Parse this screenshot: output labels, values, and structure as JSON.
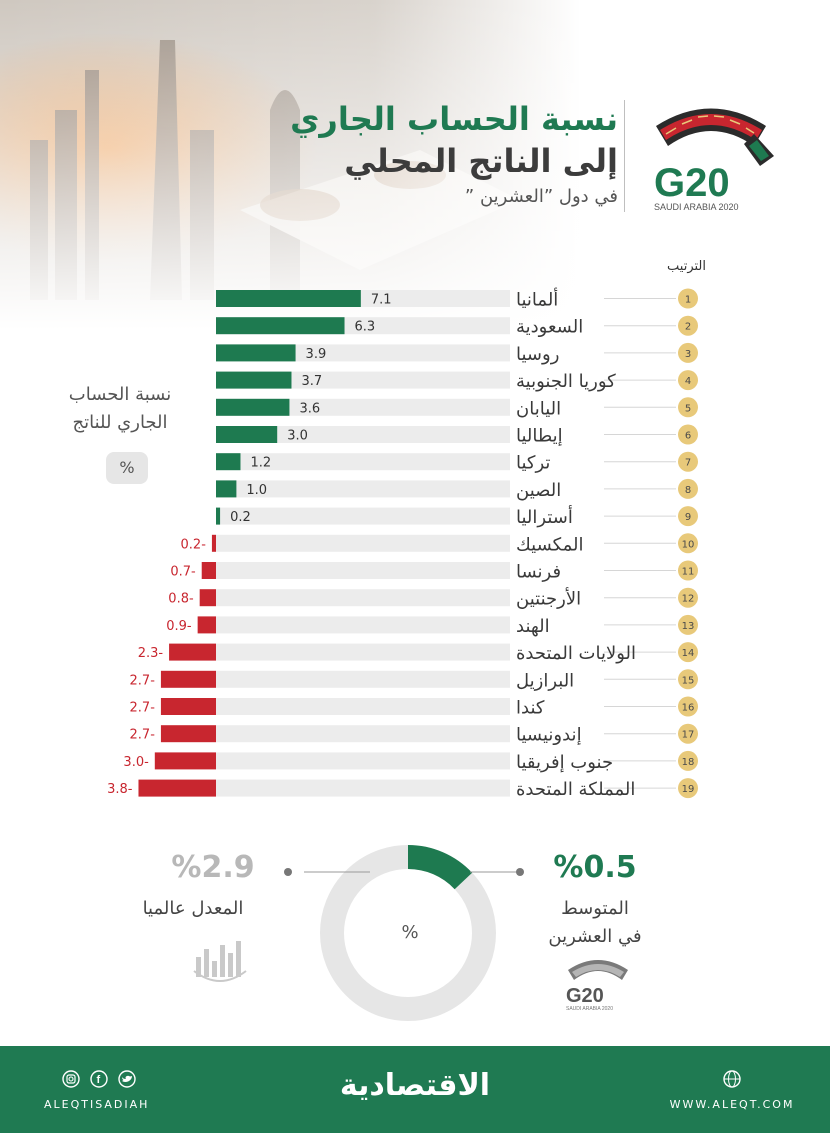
{
  "header": {
    "title_line1": "نسبة الحساب الجاري",
    "title_line2": "إلى الناتج المحلي",
    "title_line3": "في دول ”العشرين ”"
  },
  "logo": {
    "text": "G20",
    "subtitle": "SAUDI ARABIA 2020"
  },
  "rank_header": "الترتيب",
  "y_label_line1": "نسبة الحساب",
  "y_label_line2": "الجاري للناتج",
  "unit": "%",
  "colors": {
    "positive": "#1e7a50",
    "negative": "#c8262f",
    "track": "#ececec",
    "accent_gold": "#e8c97a"
  },
  "chart_data": {
    "type": "bar",
    "orientation": "horizontal",
    "title": "نسبة الحساب الجاري إلى الناتج المحلي",
    "categories": [
      "ألمانيا",
      "السعودية",
      "روسيا",
      "كوريا الجنوبية",
      "اليابان",
      "إيطاليا",
      "تركيا",
      "الصين",
      "أستراليا",
      "المكسيك",
      "فرنسا",
      "الأرجنتين",
      "الهند",
      "الولايات المتحدة",
      "البرازيل",
      "كندا",
      "إندونيسيا",
      "جنوب إفريقيا",
      "المملكة المتحدة"
    ],
    "ranks": [
      "1",
      "2",
      "3",
      "4",
      "5",
      "6",
      "7",
      "8",
      "9",
      "10",
      "11",
      "12",
      "13",
      "14",
      "15",
      "16",
      "17",
      "18",
      "19"
    ],
    "values": [
      7.1,
      6.3,
      3.9,
      3.7,
      3.6,
      3.0,
      1.2,
      1.0,
      0.2,
      -0.2,
      -0.7,
      -0.8,
      -0.9,
      -2.3,
      -2.7,
      -2.7,
      -2.7,
      -3.0,
      -3.8
    ],
    "value_labels": [
      "7.1",
      "6.3",
      "3.9",
      "3.7",
      "3.6",
      "3.0",
      "1.2",
      "1.0",
      "0.2",
      "0.2-",
      "0.7-",
      "0.8-",
      "0.9-",
      "2.3-",
      "2.7-",
      "2.7-",
      "2.7-",
      "3.0-",
      "3.8-"
    ]
  },
  "averages": {
    "g20_value": "%0.5",
    "g20_label_line1": "المتوسط",
    "g20_label_line2": "في العشرين",
    "g20_share": 0.13,
    "world_value": "%2.9",
    "world_label": "المعدل عالميا",
    "center_label": "%"
  },
  "footer": {
    "handle": "ALEQTISADIAH",
    "brand": "الاقتصادية",
    "website": "WWW.ALEQT.COM",
    "icons": [
      "instagram-icon",
      "facebook-icon",
      "twitter-icon",
      "website-icon"
    ]
  }
}
